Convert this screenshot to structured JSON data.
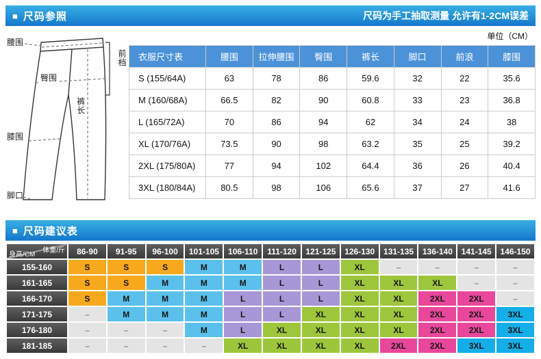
{
  "theme": {
    "bar_gradient_top": "#38AEE4",
    "bar_gradient_bottom": "#1478CC",
    "table_header_blue": "#4B92D8",
    "grid_header_dark": "#3F3F3F"
  },
  "section_size_reference": {
    "icon": "■",
    "title": "尺码参照",
    "note": "尺码为手工抽取测量 允许有1-2CM误差"
  },
  "diagram": {
    "labels": {
      "waist": "腰围",
      "front_rise": "前档",
      "hip": "臀围",
      "length": "裤长",
      "knee": "膝围",
      "hem": "脚口"
    }
  },
  "size_table": {
    "unit": "单位（CM）",
    "columns": [
      "衣服尺寸表",
      "腰围",
      "拉伸腰围",
      "臀围",
      "裤长",
      "脚口",
      "前浪",
      "膝围"
    ],
    "rows": [
      {
        "size": "S (155/64A)",
        "values": [
          "63",
          "78",
          "86",
          "59.6",
          "32",
          "22",
          "35.6"
        ]
      },
      {
        "size": "M (160/68A)",
        "values": [
          "66.5",
          "82",
          "90",
          "60.8",
          "33",
          "23",
          "36.8"
        ]
      },
      {
        "size": "L (165/72A)",
        "values": [
          "70",
          "86",
          "94",
          "62",
          "34",
          "24",
          "38"
        ]
      },
      {
        "size": "XL (170/76A)",
        "values": [
          "73.5",
          "90",
          "98",
          "63.2",
          "35",
          "25",
          "39.2"
        ]
      },
      {
        "size": "2XL (175/80A)",
        "values": [
          "77",
          "94",
          "102",
          "64.4",
          "36",
          "26",
          "40.4"
        ]
      },
      {
        "size": "3XL (180/84A)",
        "values": [
          "80.5",
          "98",
          "106",
          "65.6",
          "37",
          "27",
          "41.6"
        ]
      }
    ]
  },
  "section_size_suggestion": {
    "icon": "■",
    "title": "尺码建议表"
  },
  "suggestion_table": {
    "corner_top": "体重/斤",
    "corner_bottom": "身高/CM",
    "weight_columns": [
      "86-90",
      "91-95",
      "96-100",
      "101-105",
      "106-110",
      "111-120",
      "121-125",
      "126-130",
      "131-135",
      "136-140",
      "141-145",
      "146-150"
    ],
    "height_rows": [
      "155-160",
      "161-165",
      "166-170",
      "171-175",
      "176-180",
      "181-185"
    ],
    "cells": [
      [
        "S",
        "S",
        "S",
        "M",
        "M",
        "L",
        "L",
        "XL",
        "–",
        "–",
        "–",
        "–"
      ],
      [
        "S",
        "S",
        "M",
        "M",
        "M",
        "L",
        "L",
        "XL",
        "XL",
        "XL",
        "–",
        "–"
      ],
      [
        "S",
        "M",
        "M",
        "M",
        "L",
        "L",
        "L",
        "XL",
        "XL",
        "2XL",
        "2XL",
        "–"
      ],
      [
        "–",
        "M",
        "M",
        "M",
        "L",
        "L",
        "XL",
        "XL",
        "XL",
        "2XL",
        "2XL",
        "3XL"
      ],
      [
        "–",
        "–",
        "–",
        "M",
        "L",
        "XL",
        "XL",
        "XL",
        "XL",
        "2XL",
        "2XL",
        "3XL"
      ],
      [
        "–",
        "–",
        "–",
        "–",
        "XL",
        "XL",
        "XL",
        "XL",
        "2XL",
        "2XL",
        "3XL",
        "3XL"
      ]
    ],
    "size_colors": {
      "S": "#F7A81C",
      "M": "#5BC0EB",
      "L": "#A897D6",
      "XL": "#9DC63C",
      "2XL": "#E8479B",
      "3XL": "#15AEE8",
      "–": "#E4E4E4"
    }
  }
}
